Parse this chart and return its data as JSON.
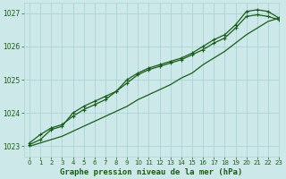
{
  "xlabel": "Graphe pression niveau de la mer (hPa)",
  "xlim": [
    -0.5,
    23
  ],
  "ylim": [
    1022.7,
    1027.3
  ],
  "yticks": [
    1023,
    1024,
    1025,
    1026,
    1027
  ],
  "xticks": [
    0,
    1,
    2,
    3,
    4,
    5,
    6,
    7,
    8,
    9,
    10,
    11,
    12,
    13,
    14,
    15,
    16,
    17,
    18,
    19,
    20,
    21,
    22,
    23
  ],
  "bg_color": "#cce8e8",
  "grid_color": "#aad4d4",
  "line_color": "#1a5c1a",
  "line1": [
    1023.1,
    1023.35,
    1023.55,
    1023.65,
    1023.9,
    1024.1,
    1024.25,
    1024.4,
    1024.65,
    1024.9,
    1025.15,
    1025.3,
    1025.4,
    1025.5,
    1025.6,
    1025.75,
    1025.9,
    1026.1,
    1026.25,
    1026.55,
    1026.9,
    1026.95,
    1026.9,
    1026.8
  ],
  "line2": [
    1023.05,
    1023.2,
    1023.5,
    1023.6,
    1024.0,
    1024.2,
    1024.35,
    1024.5,
    1024.65,
    1025.0,
    1025.2,
    1025.35,
    1025.45,
    1025.55,
    1025.65,
    1025.8,
    1026.0,
    1026.2,
    1026.35,
    1026.65,
    1027.05,
    1027.1,
    1027.05,
    1026.85
  ],
  "line3": [
    1023.0,
    1023.1,
    1023.2,
    1023.3,
    1023.45,
    1023.6,
    1023.75,
    1023.9,
    1024.05,
    1024.2,
    1024.4,
    1024.55,
    1024.7,
    1024.85,
    1025.05,
    1025.2,
    1025.45,
    1025.65,
    1025.85,
    1026.1,
    1026.35,
    1026.55,
    1026.75,
    1026.85
  ]
}
